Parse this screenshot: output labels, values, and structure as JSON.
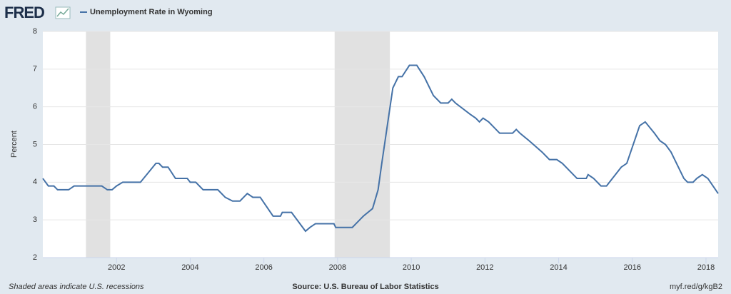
{
  "chart_data": {
    "type": "line",
    "logo": "FRED",
    "y_label": "Percent",
    "note": "Shaded areas indicate U.S. recessions",
    "source": "Source: U.S. Bureau of Labor Statistics",
    "link": "myf.red/g/kgB2",
    "x": [
      2000.0,
      2000.15,
      2000.3,
      2000.4,
      2000.7,
      2000.85,
      2001.6,
      2001.75,
      2001.88,
      2002.0,
      2002.17,
      2002.65,
      2003.07,
      2003.15,
      2003.25,
      2003.4,
      2003.6,
      2003.92,
      2004.0,
      2004.15,
      2004.25,
      2004.35,
      2004.75,
      2004.95,
      2005.15,
      2005.35,
      2005.45,
      2005.55,
      2005.7,
      2005.9,
      2006.25,
      2006.45,
      2006.5,
      2006.75,
      2007.13,
      2007.25,
      2007.4,
      2007.9,
      2007.95,
      2008.4,
      2008.5,
      2008.7,
      2008.95,
      2009.1,
      2009.2,
      2009.35,
      2009.5,
      2009.65,
      2009.75,
      2009.95,
      2010.15,
      2010.35,
      2010.6,
      2010.8,
      2011.0,
      2011.1,
      2011.2,
      2011.6,
      2011.75,
      2011.85,
      2011.95,
      2012.1,
      2012.4,
      2012.75,
      2012.85,
      2012.95,
      2013.2,
      2013.55,
      2013.75,
      2013.95,
      2014.1,
      2014.5,
      2014.75,
      2014.8,
      2014.95,
      2015.15,
      2015.3,
      2015.7,
      2015.85,
      2016.2,
      2016.35,
      2016.6,
      2016.75,
      2016.9,
      2017.05,
      2017.4,
      2017.5,
      2017.65,
      2017.75,
      2017.9,
      2018.05,
      2018.33
    ],
    "series": [
      {
        "name": "Unemployment Rate in Wyoming",
        "color": "#4572a7",
        "values": [
          4.1,
          3.9,
          3.9,
          3.8,
          3.8,
          3.9,
          3.9,
          3.8,
          3.8,
          3.9,
          4.0,
          4.0,
          4.5,
          4.5,
          4.4,
          4.4,
          4.1,
          4.1,
          4.0,
          4.0,
          3.9,
          3.8,
          3.8,
          3.6,
          3.5,
          3.5,
          3.6,
          3.7,
          3.6,
          3.6,
          3.1,
          3.1,
          3.2,
          3.2,
          2.7,
          2.8,
          2.9,
          2.9,
          2.8,
          2.8,
          2.9,
          3.1,
          3.3,
          3.8,
          4.5,
          5.5,
          6.5,
          6.8,
          6.8,
          7.1,
          7.1,
          6.8,
          6.3,
          6.1,
          6.1,
          6.2,
          6.1,
          5.8,
          5.7,
          5.6,
          5.7,
          5.6,
          5.3,
          5.3,
          5.4,
          5.3,
          5.1,
          4.8,
          4.6,
          4.6,
          4.5,
          4.1,
          4.1,
          4.2,
          4.1,
          3.9,
          3.9,
          4.4,
          4.5,
          5.5,
          5.6,
          5.3,
          5.1,
          5.0,
          4.8,
          4.1,
          4.0,
          4.0,
          4.1,
          4.2,
          4.1,
          3.7
        ]
      }
    ],
    "recessions": [
      [
        2001.17,
        2001.83
      ],
      [
        2007.92,
        2009.42
      ]
    ],
    "xlim": [
      2000.0,
      2018.33
    ],
    "xticks": [
      2002,
      2004,
      2006,
      2008,
      2010,
      2012,
      2014,
      2016,
      2018
    ],
    "ylim": [
      2,
      8
    ],
    "yticks": [
      2,
      3,
      4,
      5,
      6,
      7,
      8
    ],
    "grid": true
  }
}
